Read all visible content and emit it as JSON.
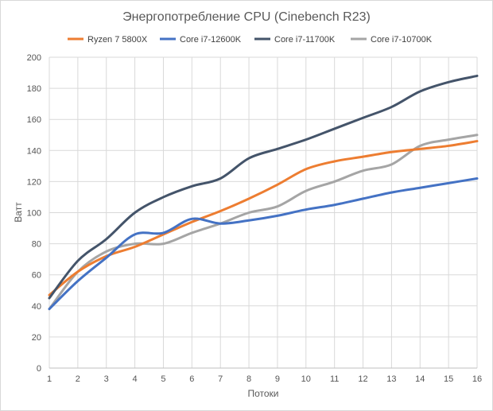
{
  "chart_data": {
    "type": "line",
    "title": "Энергопотребление CPU (Cinebench R23)",
    "xlabel": "Потоки",
    "ylabel": "Ватт",
    "x": [
      1,
      2,
      3,
      4,
      5,
      6,
      7,
      8,
      9,
      10,
      11,
      12,
      13,
      14,
      15,
      16
    ],
    "xlim": [
      1,
      16
    ],
    "ylim": [
      0,
      200
    ],
    "yticks": [
      0,
      20,
      40,
      60,
      80,
      100,
      120,
      140,
      160,
      180,
      200
    ],
    "grid": true,
    "legend_position": "top",
    "series": [
      {
        "name": "Ryzen 7 5800X",
        "color": "#ED7D31",
        "values": [
          47,
          62,
          72,
          78,
          86,
          94,
          101,
          109,
          118,
          128,
          133,
          136,
          139,
          141,
          143,
          146
        ]
      },
      {
        "name": "Core i7-12600K",
        "color": "#4472C4",
        "values": [
          38,
          56,
          71,
          86,
          87,
          96,
          93,
          95,
          98,
          102,
          105,
          109,
          113,
          116,
          119,
          122
        ]
      },
      {
        "name": "Core i7-11700K",
        "color": "#44546A",
        "values": [
          45,
          69,
          83,
          100,
          110,
          117,
          122,
          135,
          141,
          147,
          154,
          161,
          168,
          178,
          184,
          188
        ]
      },
      {
        "name": "Core i7-10700K",
        "color": "#A5A5A5",
        "values": [
          38,
          62,
          75,
          80,
          80,
          87,
          93,
          100,
          104,
          114,
          120,
          127,
          131,
          143,
          147,
          150
        ]
      }
    ]
  }
}
